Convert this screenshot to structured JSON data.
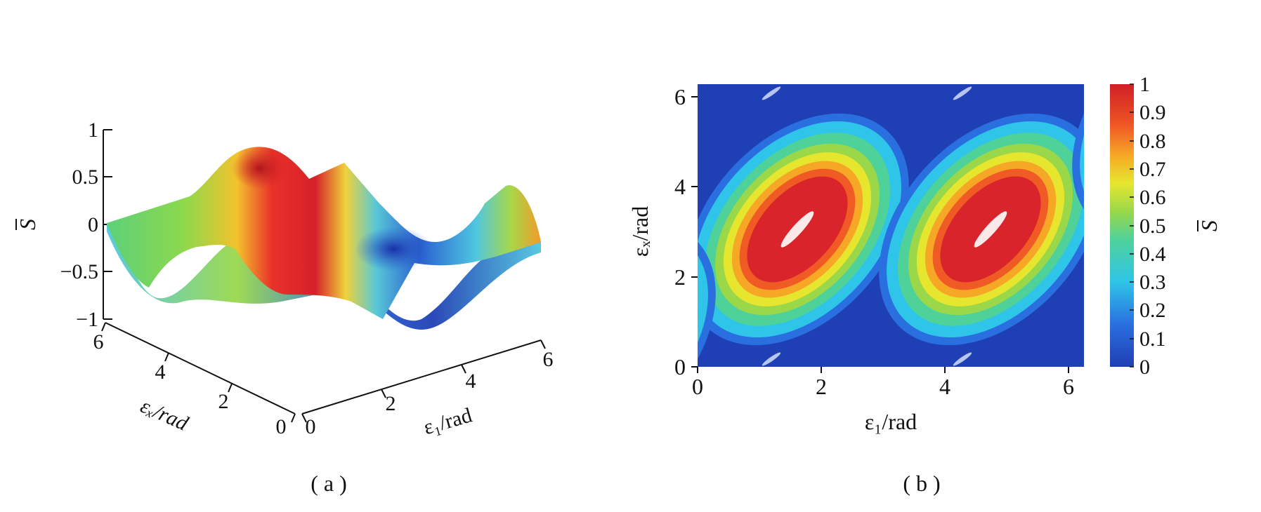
{
  "chart_data": [
    {
      "panel": "a",
      "type": "surface",
      "caption": "( a )",
      "zlabel": "S",
      "xlabel": "ε₁/rad",
      "ylabel": "εₓ/rad",
      "z_ticks": [
        "1",
        "0.5",
        "0",
        "−0.5",
        "−1"
      ],
      "x_ticks": [
        "0",
        "2",
        "4",
        "6"
      ],
      "y_ticks": [
        "0",
        "2",
        "4",
        "6"
      ],
      "zlim": [
        -1,
        1
      ],
      "xlim": [
        0,
        6.28
      ],
      "ylim": [
        0,
        6.28
      ],
      "colormap": "jet"
    },
    {
      "panel": "b",
      "type": "heatmap",
      "caption": "( b )",
      "xlabel": "ε₁/rad",
      "ylabel": "εₓ/rad",
      "x_ticks": [
        "0",
        "2",
        "4",
        "6"
      ],
      "y_ticks": [
        "0",
        "2",
        "4",
        "6"
      ],
      "xlim": [
        0,
        6.28
      ],
      "ylim": [
        0,
        6.28
      ],
      "colorbar_label": "S",
      "colorbar_ticks": [
        "1",
        "0.9",
        "0.8",
        "0.7",
        "0.6",
        "0.5",
        "0.4",
        "0.3",
        "0.2",
        "0.1",
        "0"
      ],
      "colorbar_range": [
        0,
        1
      ],
      "colormap": "jet"
    }
  ]
}
